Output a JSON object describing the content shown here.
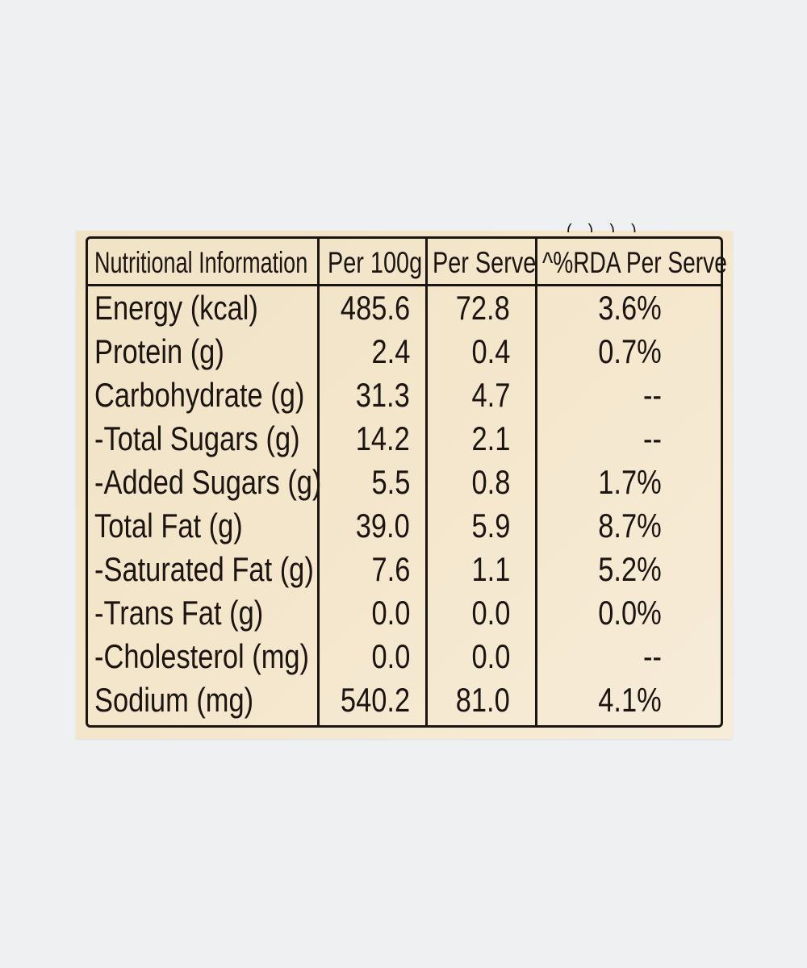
{
  "table": {
    "headers": {
      "nutrient": "Nutritional Information",
      "per_100g": "Per 100g",
      "per_serve": "Per Serve",
      "rda": "^%RDA Per Serve"
    },
    "rows": [
      {
        "nutrient": "Energy (kcal)",
        "per_100g": "485.6",
        "per_serve": "72.8",
        "rda": "3.6%"
      },
      {
        "nutrient": "Protein (g)",
        "per_100g": "2.4",
        "per_serve": "0.4",
        "rda": "0.7%"
      },
      {
        "nutrient": "Carbohydrate (g)",
        "per_100g": "31.3",
        "per_serve": "4.7",
        "rda": "--"
      },
      {
        "nutrient": "-Total Sugars (g)",
        "per_100g": "14.2",
        "per_serve": "2.1",
        "rda": "--"
      },
      {
        "nutrient": "-Added Sugars (g)",
        "per_100g": "5.5",
        "per_serve": "0.8",
        "rda": "1.7%"
      },
      {
        "nutrient": "Total Fat (g)",
        "per_100g": "39.0",
        "per_serve": "5.9",
        "rda": "8.7%"
      },
      {
        "nutrient": "-Saturated Fat (g)",
        "per_100g": "7.6",
        "per_serve": "1.1",
        "rda": "5.2%"
      },
      {
        "nutrient": "-Trans Fat (g)",
        "per_100g": "0.0",
        "per_serve": "0.0",
        "rda": "0.0%"
      },
      {
        "nutrient": "-Cholesterol (mg)",
        "per_100g": "0.0",
        "per_serve": "0.0",
        "rda": "--"
      },
      {
        "nutrient": "Sodium (mg)",
        "per_100g": "540.2",
        "per_serve": "81.0",
        "rda": "4.1%"
      }
    ]
  },
  "colors": {
    "background": "#eef0f1",
    "label_paper": "#f3e5c9",
    "ink": "#1b1410"
  }
}
